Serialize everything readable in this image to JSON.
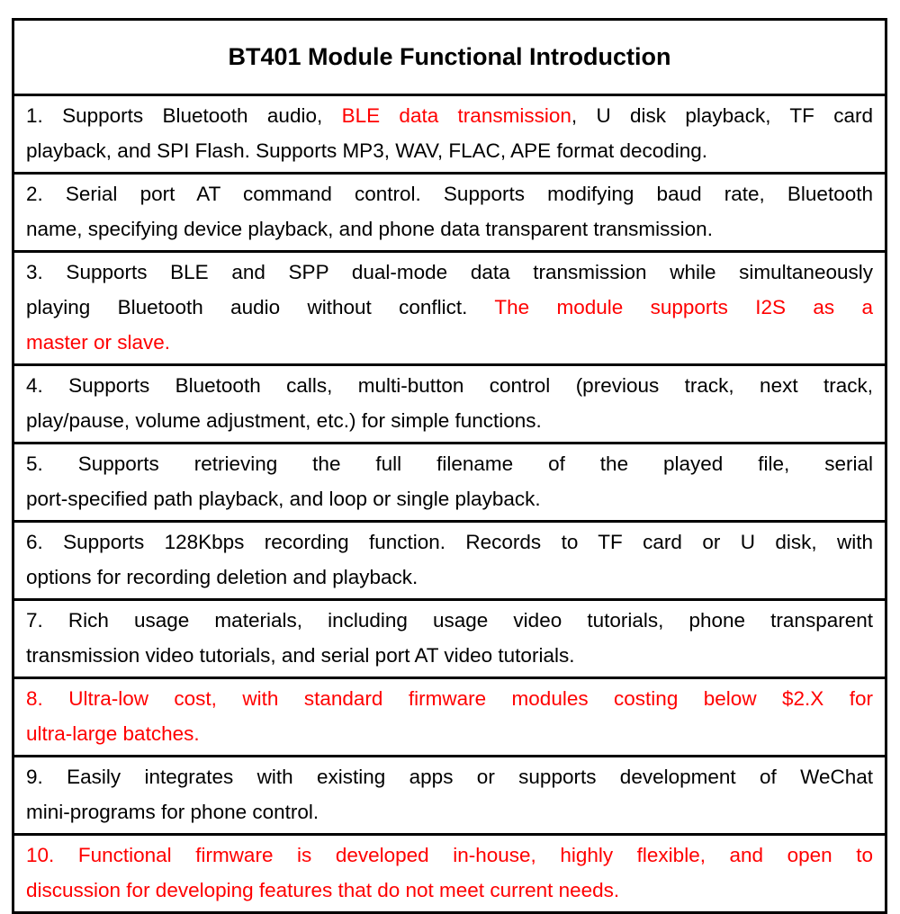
{
  "title": "BT401 Module Functional Introduction",
  "accent_color": "#ff0000",
  "rows": [
    {
      "lines": [
        [
          {
            "t": "1. Supports Bluetooth audio, "
          },
          {
            "t": "BLE data transmission",
            "red": true
          },
          {
            "t": ", U disk playback, TF card"
          }
        ],
        [
          {
            "t": "playback, and SPI Flash. Supports MP3, WAV, FLAC, APE format decoding."
          }
        ]
      ]
    },
    {
      "lines": [
        [
          {
            "t": "2. Serial port AT command control. Supports modifying baud rate, Bluetooth"
          }
        ],
        [
          {
            "t": "name, specifying device playback, and phone data transparent transmission."
          }
        ]
      ]
    },
    {
      "lines": [
        [
          {
            "t": "3. Supports BLE and SPP dual-mode data transmission while simultaneously"
          }
        ],
        [
          {
            "t": "playing Bluetooth audio without conflict. "
          },
          {
            "t": "The module supports I2S as a",
            "red": true
          }
        ],
        [
          {
            "t": "master or slave.",
            "red": true
          }
        ]
      ]
    },
    {
      "lines": [
        [
          {
            "t": "4. Supports Bluetooth calls, multi-button control (previous track, next track,"
          }
        ],
        [
          {
            "t": "play/pause, volume adjustment, etc.) for simple functions."
          }
        ]
      ]
    },
    {
      "lines": [
        [
          {
            "t": "5. Supports retrieving the full filename of the played file, serial"
          }
        ],
        [
          {
            "t": "port-specified path playback, and loop or single playback."
          }
        ]
      ]
    },
    {
      "lines": [
        [
          {
            "t": "6. Supports 128Kbps recording function. Records to TF card or U disk, with"
          }
        ],
        [
          {
            "t": "options for recording deletion and playback."
          }
        ]
      ]
    },
    {
      "lines": [
        [
          {
            "t": "7. Rich usage materials, including usage video tutorials, phone transparent"
          }
        ],
        [
          {
            "t": "transmission video tutorials, and serial port AT video tutorials."
          }
        ]
      ]
    },
    {
      "lines": [
        [
          {
            "t": "8. Ultra-low cost, with standard firmware modules costing below $2.X for",
            "red": true
          }
        ],
        [
          {
            "t": "ultra-large batches.",
            "red": true
          }
        ]
      ]
    },
    {
      "lines": [
        [
          {
            "t": "9. Easily integrates with existing apps or supports development of WeChat"
          }
        ],
        [
          {
            "t": "mini-programs for phone control."
          }
        ]
      ]
    },
    {
      "lines": [
        [
          {
            "t": "10. Functional firmware is developed in-house, highly flexible, and open to",
            "red": true
          }
        ],
        [
          {
            "t": "discussion for developing features that do not meet current needs.",
            "red": true
          }
        ]
      ]
    }
  ]
}
